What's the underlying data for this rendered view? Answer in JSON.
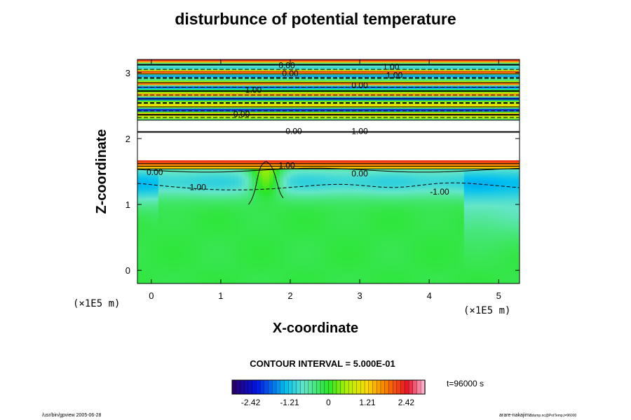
{
  "chart_data": {
    "type": "heatmap",
    "title": "disturbunce of potential temperature",
    "xlabel": "X-coordinate",
    "ylabel": "Z-coordinate",
    "x_unit": "(×1E5 m)",
    "xlim": [
      -0.2,
      5.3
    ],
    "ylim": [
      -0.2,
      3.2
    ],
    "x_ticks": [
      0,
      1,
      2,
      3,
      4,
      5
    ],
    "y_ticks": [
      0,
      1,
      2,
      3
    ],
    "contour_interval": "CONTOUR INTERVAL = 5.000E-01",
    "colorbar": {
      "ticks": [
        -2.42,
        -1.21,
        0,
        1.21,
        2.42
      ],
      "tick_labels": [
        "-2.42",
        "-1.21",
        "0",
        "1.21",
        "2.42"
      ],
      "range": [
        -3.0,
        3.0
      ]
    },
    "contour_labels": [
      {
        "text": "0.00",
        "x": 1.95,
        "y": 3.12
      },
      {
        "text": "1.00",
        "x": 3.45,
        "y": 3.1
      },
      {
        "text": "1.00",
        "x": 3.5,
        "y": 2.97
      },
      {
        "text": "0.00",
        "x": 2.0,
        "y": 3.0
      },
      {
        "text": "0.00",
        "x": 3.0,
        "y": 2.82
      },
      {
        "text": "-1.00",
        "x": 1.45,
        "y": 2.75
      },
      {
        "text": "0.00",
        "x": 1.3,
        "y": 2.38
      },
      {
        "text": "0.00",
        "x": 2.05,
        "y": 2.12
      },
      {
        "text": "1.00",
        "x": 3.0,
        "y": 2.12
      },
      {
        "text": "1.00",
        "x": 1.95,
        "y": 1.6
      },
      {
        "text": "0.00",
        "x": 0.05,
        "y": 1.5
      },
      {
        "text": "0.00",
        "x": 3.0,
        "y": 1.48
      },
      {
        "text": "-1.00",
        "x": 0.65,
        "y": 1.27
      },
      {
        "text": "-1.00",
        "x": 4.15,
        "y": 1.2
      }
    ],
    "grid": false
  },
  "time_label": "t=96000 s",
  "footer_left": "/usr/bin/gpview 2005-06-28",
  "footer_right_main": "arare-nakajima",
  "footer_right_small": "dump.nc@PotTemp,t=96000"
}
